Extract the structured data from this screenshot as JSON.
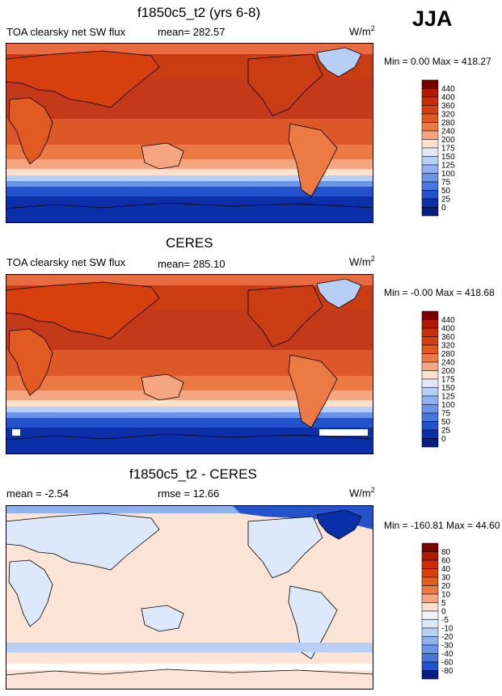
{
  "season": "JJA",
  "panels": [
    {
      "title": "f1850c5_t2 (yrs 6-8)",
      "left_label": "TOA clearsky net SW flux",
      "center_label": "mean= 282.57",
      "units_base": "W/m",
      "units_exp": "2",
      "range_text": "Min =   0.00 Max = 418.27",
      "colorbar": {
        "labels": [
          "440",
          "400",
          "360",
          "320",
          "280",
          "240",
          "200",
          "175",
          "150",
          "125",
          "100",
          "75",
          "50",
          "25",
          "0"
        ],
        "colors": [
          "#7a0000",
          "#b01a00",
          "#c92e08",
          "#d6400f",
          "#e05a22",
          "#eb7a45",
          "#f5a680",
          "#fde1cc",
          "#dde9fa",
          "#b8cff5",
          "#8fb1ef",
          "#6a94e8",
          "#4676de",
          "#2452cc",
          "#0b2fa8",
          "#071d80"
        ]
      }
    },
    {
      "title": "CERES",
      "left_label": "TOA clearsky net SW flux",
      "center_label": "mean= 285.10",
      "units_base": "W/m",
      "units_exp": "2",
      "range_text": "Min =  -0.00 Max = 418.68",
      "colorbar": {
        "labels": [
          "440",
          "400",
          "360",
          "320",
          "280",
          "240",
          "200",
          "175",
          "150",
          "125",
          "100",
          "75",
          "50",
          "25",
          "0"
        ],
        "colors": [
          "#7a0000",
          "#b01a00",
          "#c92e08",
          "#d6400f",
          "#e05a22",
          "#eb7a45",
          "#f5a680",
          "#fde1cc",
          "#dde9fa",
          "#b8cff5",
          "#8fb1ef",
          "#6a94e8",
          "#4676de",
          "#2452cc",
          "#0b2fa8",
          "#071d80"
        ]
      }
    },
    {
      "title": "f1850c5_t2 - CERES",
      "left_label": "mean =  -2.54",
      "center_label": "rmse =  12.66",
      "units_base": "W/m",
      "units_exp": "2",
      "range_text": "Min = -160.81 Max =  44.60",
      "colorbar": {
        "labels": [
          "80",
          "60",
          "40",
          "30",
          "20",
          "10",
          "5",
          "0",
          "-5",
          "-10",
          "-20",
          "-30",
          "-40",
          "-60",
          "-80"
        ],
        "colors": [
          "#7a0000",
          "#b01a00",
          "#c92e08",
          "#d6400f",
          "#e05a22",
          "#eb7a45",
          "#f5a680",
          "#fde1cc",
          "#eef3fb",
          "#dde9fa",
          "#b8cff5",
          "#8fb1ef",
          "#6a94e8",
          "#4676de",
          "#2452cc",
          "#071d80"
        ]
      }
    }
  ],
  "legend_colors": {
    "ocean_warm": "#d24a1e",
    "land_warm": "#e8653a",
    "coast_line": "#000000",
    "cold_deep": "#0b2fa8",
    "diff_neutral": "#fbe4d5",
    "diff_land": "#dde9fa"
  }
}
